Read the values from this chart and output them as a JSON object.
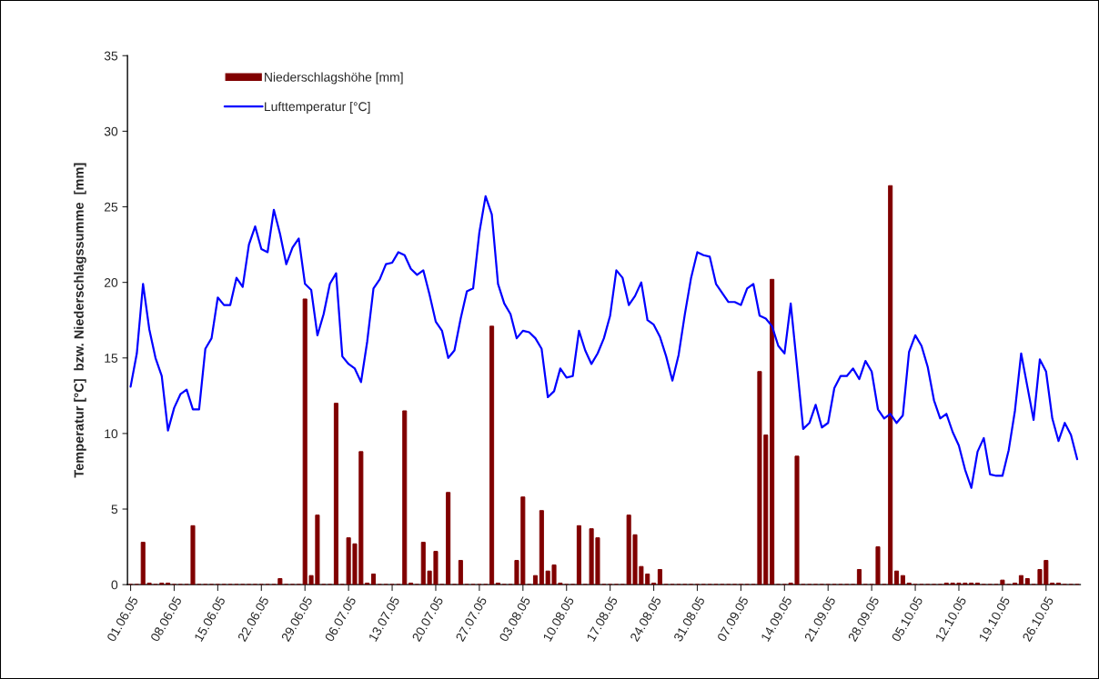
{
  "chart_data": {
    "type": "bar",
    "ylabel": "Temperatur [°C]  bzw. Niederschlagssumme  [mm]",
    "categories": [
      "01.06.05",
      null,
      null,
      null,
      null,
      null,
      null,
      "08.06.05",
      null,
      null,
      null,
      null,
      null,
      null,
      "15.06.05",
      null,
      null,
      null,
      null,
      null,
      null,
      "22.06.05",
      null,
      null,
      null,
      null,
      null,
      null,
      "29.06.05",
      null,
      null,
      null,
      null,
      null,
      null,
      "06.07.05",
      null,
      null,
      null,
      null,
      null,
      null,
      "13.07.05",
      null,
      null,
      null,
      null,
      null,
      null,
      "20.07.05",
      null,
      null,
      null,
      null,
      null,
      null,
      "27.07.05",
      null,
      null,
      null,
      null,
      null,
      null,
      "03.08.05",
      null,
      null,
      null,
      null,
      null,
      null,
      "10.08.05",
      null,
      null,
      null,
      null,
      null,
      null,
      "17.08.05",
      null,
      null,
      null,
      null,
      null,
      null,
      "24.08.05",
      null,
      null,
      null,
      null,
      null,
      null,
      "31.08.05",
      null,
      null,
      null,
      null,
      null,
      null,
      "07.09.05",
      null,
      null,
      null,
      null,
      null,
      null,
      "14.09.05",
      null,
      null,
      null,
      null,
      null,
      null,
      "21.09.05",
      null,
      null,
      null,
      null,
      null,
      null,
      "28.09.05",
      null,
      null,
      null,
      null,
      null,
      null,
      "05.10.05",
      null,
      null,
      null,
      null,
      null,
      null,
      "12.10.05",
      null,
      null,
      null,
      null,
      null,
      null,
      "19.10.05",
      null,
      null,
      null,
      null,
      null,
      null,
      "26.10.05",
      null,
      null,
      null,
      null,
      null
    ],
    "series": [
      {
        "name": "Niederschlagshöhe [mm]",
        "color": "#800000",
        "values": [
          0,
          0,
          2.8,
          0.1,
          0,
          0.1,
          0.1,
          0,
          0,
          0,
          3.9,
          0,
          0,
          0,
          0,
          0,
          0,
          0,
          0,
          0,
          0,
          0,
          0,
          0,
          0.4,
          0,
          0,
          0,
          18.9,
          0.6,
          4.6,
          0,
          0,
          12.0,
          0,
          3.1,
          2.7,
          8.8,
          0.1,
          0.7,
          0,
          0,
          0,
          0,
          11.5,
          0.1,
          0,
          2.8,
          0.9,
          2.2,
          0,
          6.1,
          0,
          1.6,
          0,
          0,
          0,
          0,
          17.1,
          0.1,
          0,
          0,
          1.6,
          5.8,
          0,
          0.6,
          4.9,
          0.9,
          1.3,
          0.1,
          0,
          0,
          3.9,
          0,
          3.7,
          3.1,
          0,
          0,
          0,
          0,
          4.6,
          3.3,
          1.2,
          0.7,
          0.1,
          1.0,
          0,
          0,
          0,
          0,
          0,
          0,
          0,
          0,
          0,
          0,
          0,
          0,
          0,
          0,
          0,
          14.1,
          9.9,
          20.2,
          0,
          0,
          0.1,
          8.5,
          0,
          0,
          0,
          0,
          0,
          0,
          0,
          0,
          0,
          1.0,
          0,
          0,
          2.5,
          0,
          26.4,
          0.9,
          0.6,
          0.1,
          0,
          0,
          0,
          0,
          0,
          0.1,
          0.1,
          0.1,
          0.1,
          0.1,
          0.1,
          0,
          0,
          0,
          0.3,
          0,
          0.1,
          0.6,
          0.4,
          0,
          1.0,
          1.6,
          0.1,
          0.1,
          0,
          0,
          0
        ]
      },
      {
        "name": "Lufttemperatur [°C]",
        "type": "line",
        "color": "#0000ff",
        "values": [
          13.1,
          15.3,
          19.9,
          16.9,
          15.0,
          13.8,
          10.2,
          11.7,
          12.6,
          12.9,
          11.6,
          11.6,
          15.6,
          16.3,
          19.0,
          18.5,
          18.5,
          20.3,
          19.7,
          22.5,
          23.7,
          22.2,
          22.0,
          24.8,
          23.2,
          21.2,
          22.3,
          22.9,
          19.9,
          19.5,
          16.5,
          17.9,
          19.9,
          20.6,
          15.1,
          14.6,
          14.3,
          13.4,
          16.1,
          19.6,
          20.2,
          21.2,
          21.3,
          22.0,
          21.8,
          20.9,
          20.5,
          20.8,
          19.2,
          17.4,
          16.8,
          15.0,
          15.5,
          17.6,
          19.4,
          19.6,
          23.3,
          25.7,
          24.5,
          19.9,
          18.6,
          17.9,
          16.3,
          16.8,
          16.7,
          16.3,
          15.6,
          12.4,
          12.8,
          14.3,
          13.7,
          13.8,
          16.8,
          15.5,
          14.6,
          15.3,
          16.3,
          17.8,
          20.8,
          20.3,
          18.5,
          19.1,
          20.0,
          17.5,
          17.2,
          16.4,
          15.1,
          13.5,
          15.2,
          17.9,
          20.3,
          22.0,
          21.8,
          21.7,
          19.9,
          19.3,
          18.7,
          18.7,
          18.5,
          19.6,
          19.9,
          17.8,
          17.6,
          17.1,
          15.8,
          15.3,
          18.6,
          14.5,
          10.3,
          10.7,
          11.9,
          10.4,
          10.7,
          13.0,
          13.8,
          13.8,
          14.3,
          13.6,
          14.8,
          14.1,
          11.6,
          11.0,
          11.3,
          10.7,
          11.2,
          15.4,
          16.5,
          15.8,
          14.4,
          12.2,
          11.0,
          11.3,
          10.1,
          9.2,
          7.6,
          6.4,
          8.8,
          9.7,
          7.3,
          7.2,
          7.2,
          8.9,
          11.5,
          15.3,
          13.1,
          10.9,
          14.9,
          14.1,
          11.0,
          9.5,
          10.7,
          9.9,
          8.3
        ]
      }
    ],
    "ylim": [
      0,
      35
    ],
    "yticks": [
      0,
      5,
      10,
      15,
      20,
      25,
      30,
      35
    ],
    "grid": false,
    "legend": "top left",
    "marker": "none",
    "line_style": "solid"
  }
}
